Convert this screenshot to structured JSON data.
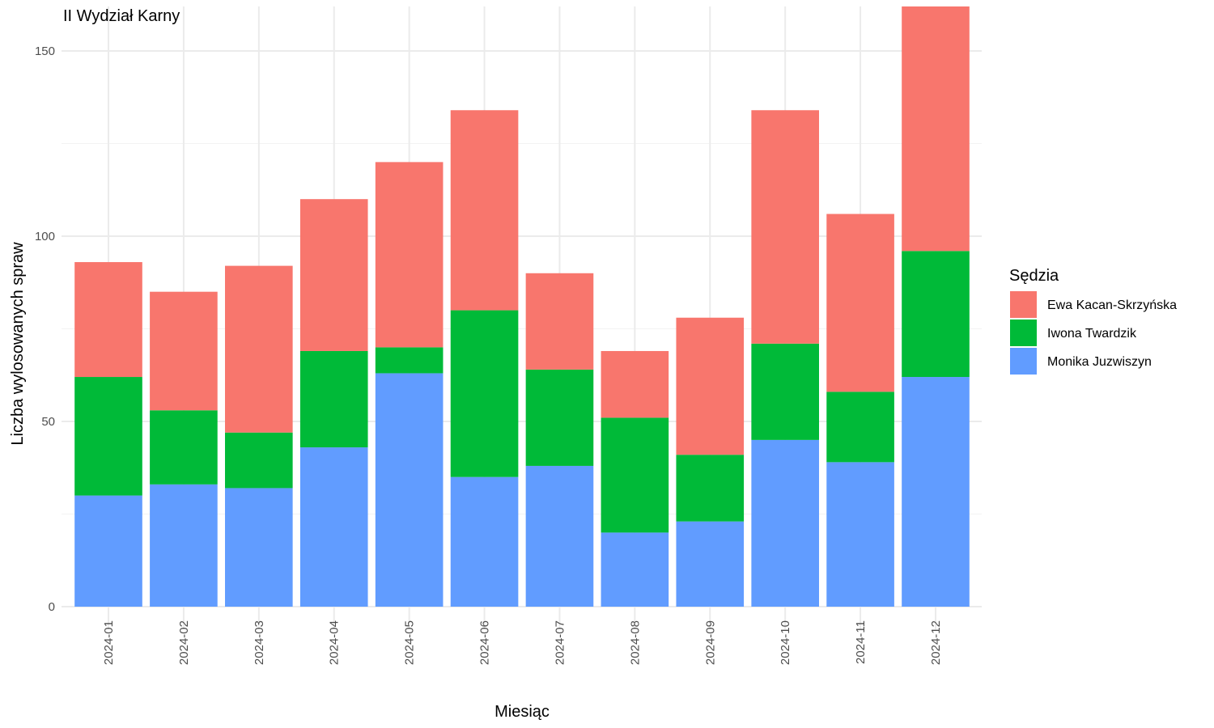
{
  "chart_data": {
    "type": "bar",
    "stacked": true,
    "title": "II Wydział Karny",
    "xlabel": "Miesiąc",
    "ylabel": "Liczba wylosowanych spraw",
    "ylim": [
      0,
      162
    ],
    "yticks": [
      0,
      50,
      100,
      150
    ],
    "grid": true,
    "legend": {
      "title": "Sędzia",
      "position": "right"
    },
    "categories": [
      "2024-01",
      "2024-02",
      "2024-03",
      "2024-04",
      "2024-05",
      "2024-06",
      "2024-07",
      "2024-08",
      "2024-09",
      "2024-10",
      "2024-11",
      "2024-12"
    ],
    "series": [
      {
        "name": "Monika Juzwiszyn",
        "color": "#619CFF",
        "values": [
          30,
          33,
          32,
          43,
          63,
          35,
          38,
          20,
          23,
          45,
          39,
          62
        ]
      },
      {
        "name": "Iwona Twardzik",
        "color": "#00BA38",
        "values": [
          32,
          20,
          15,
          26,
          7,
          45,
          26,
          31,
          18,
          26,
          19,
          34
        ]
      },
      {
        "name": "Ewa Kacan-Skrzyńska",
        "color": "#F8766D",
        "values": [
          31,
          32,
          45,
          41,
          50,
          54,
          26,
          18,
          37,
          63,
          48,
          66
        ]
      }
    ],
    "legend_order": [
      "Ewa Kacan-Skrzyńska",
      "Iwona Twardzik",
      "Monika Juzwiszyn"
    ]
  }
}
